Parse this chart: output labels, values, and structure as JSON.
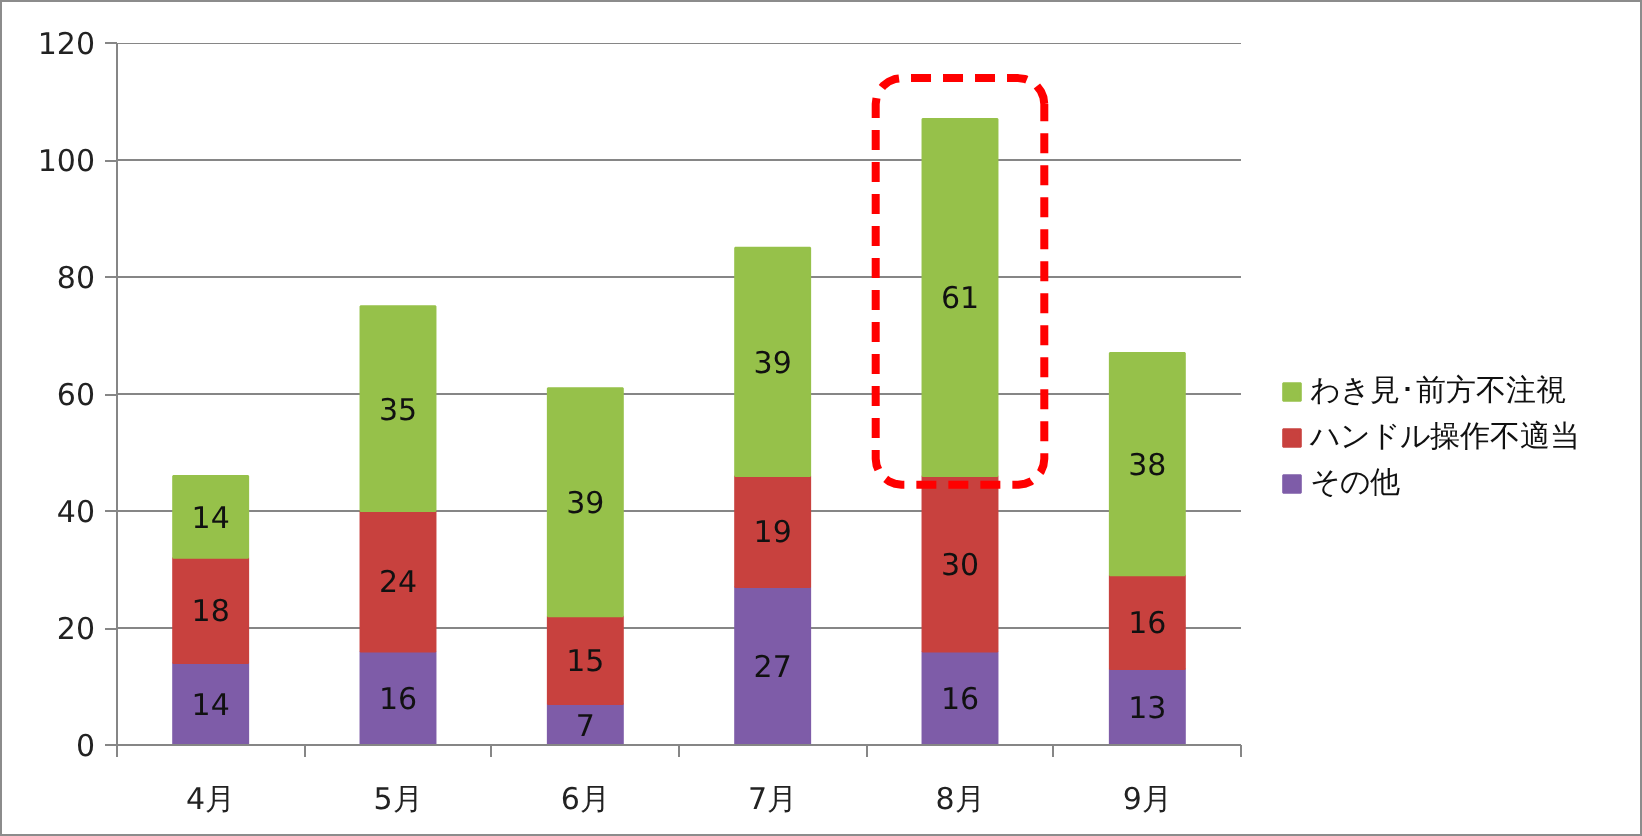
{
  "chart_data": {
    "type": "bar",
    "stacked": true,
    "categories": [
      "4月",
      "5月",
      "6月",
      "7月",
      "8月",
      "9月"
    ],
    "series": [
      {
        "name": "その他",
        "color": "#7e5ca8",
        "values": [
          14,
          16,
          7,
          27,
          16,
          13
        ]
      },
      {
        "name": "ハンドル操作不適当",
        "color": "#c8413e",
        "values": [
          18,
          24,
          15,
          19,
          30,
          16
        ]
      },
      {
        "name": "わき見･前方不注視",
        "color": "#96c14a",
        "values": [
          14,
          35,
          39,
          39,
          61,
          38
        ]
      }
    ],
    "ylim": [
      0,
      120
    ],
    "yticks": [
      0,
      20,
      40,
      60,
      80,
      100,
      120
    ],
    "grid": "y",
    "legend": "right",
    "data_labels": true
  }
}
